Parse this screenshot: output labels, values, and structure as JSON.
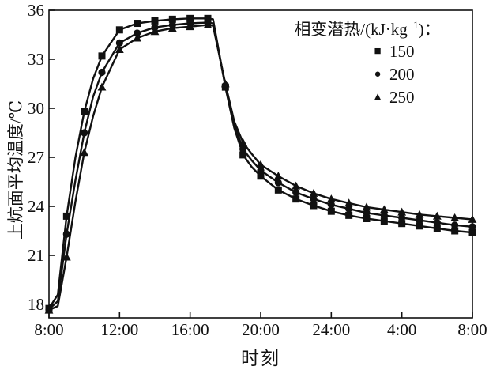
{
  "figure": {
    "background": "#ffffff",
    "ink": "#111111"
  },
  "axes": {
    "x_title": "时刻",
    "y_title": "上炕面平均温度/℃"
  },
  "legend": {
    "title_prefix": "相变潜热/(kJ·kg",
    "title_sup": "−1",
    "title_suffix": ")：",
    "items": [
      {
        "marker": "square",
        "glyph": "■",
        "label": "150"
      },
      {
        "marker": "circle",
        "glyph": "●",
        "label": "200"
      },
      {
        "marker": "triangle",
        "glyph": "▲",
        "label": "250"
      }
    ]
  },
  "chart_data": {
    "type": "line",
    "title": "",
    "xlabel": "时刻",
    "ylabel": "上炕面平均温度/℃",
    "legend_title": "相变潜热/(kJ·kg−1)：",
    "legend_position": "top-right-inside",
    "grid": false,
    "ylim": [
      18,
      36
    ],
    "y_tick_values": [
      18,
      21,
      24,
      27,
      30,
      33,
      36
    ],
    "x_tick_hours": [
      8,
      12,
      16,
      20,
      24,
      28,
      32
    ],
    "x_tick_labels": [
      "8:00",
      "12:00",
      "16:00",
      "20:00",
      "24:00",
      "4:00",
      "8:00"
    ],
    "x_hours": [
      8,
      8.5,
      9,
      9.5,
      10,
      10.5,
      11,
      12,
      13,
      14,
      15,
      16,
      17,
      17.3,
      18,
      18.5,
      19,
      19.5,
      20,
      21,
      22,
      23,
      24,
      25,
      26,
      27,
      28,
      29,
      30,
      31,
      32
    ],
    "marker_hours": [
      8,
      9,
      10,
      11,
      12,
      13,
      14,
      15,
      16,
      17,
      18,
      19,
      20,
      21,
      22,
      23,
      24,
      25,
      26,
      27,
      28,
      29,
      30,
      31,
      32
    ],
    "series": [
      {
        "name": "150",
        "marker": "square",
        "values": [
          17.75,
          18.6,
          23.4,
          27.0,
          29.8,
          31.8,
          33.2,
          34.8,
          35.2,
          35.35,
          35.45,
          35.5,
          35.5,
          35.45,
          31.3,
          28.8,
          27.15,
          26.4,
          25.85,
          25.0,
          24.45,
          24.05,
          23.7,
          23.45,
          23.25,
          23.1,
          22.95,
          22.8,
          22.65,
          22.5,
          22.4
        ]
      },
      {
        "name": "200",
        "marker": "circle",
        "values": [
          17.7,
          18.2,
          22.3,
          25.6,
          28.5,
          30.7,
          32.2,
          34.0,
          34.6,
          34.95,
          35.1,
          35.2,
          35.25,
          35.2,
          31.4,
          29.0,
          27.5,
          26.8,
          26.2,
          25.45,
          24.85,
          24.45,
          24.1,
          23.85,
          23.6,
          23.45,
          23.3,
          23.15,
          23.0,
          22.85,
          22.75
        ]
      },
      {
        "name": "250",
        "marker": "triangle",
        "values": [
          17.65,
          17.9,
          20.9,
          24.3,
          27.3,
          29.5,
          31.3,
          33.6,
          34.3,
          34.7,
          34.9,
          35.0,
          35.1,
          35.05,
          31.5,
          29.2,
          27.9,
          27.2,
          26.55,
          25.85,
          25.25,
          24.8,
          24.45,
          24.2,
          23.95,
          23.8,
          23.65,
          23.5,
          23.4,
          23.3,
          23.2
        ]
      }
    ]
  }
}
